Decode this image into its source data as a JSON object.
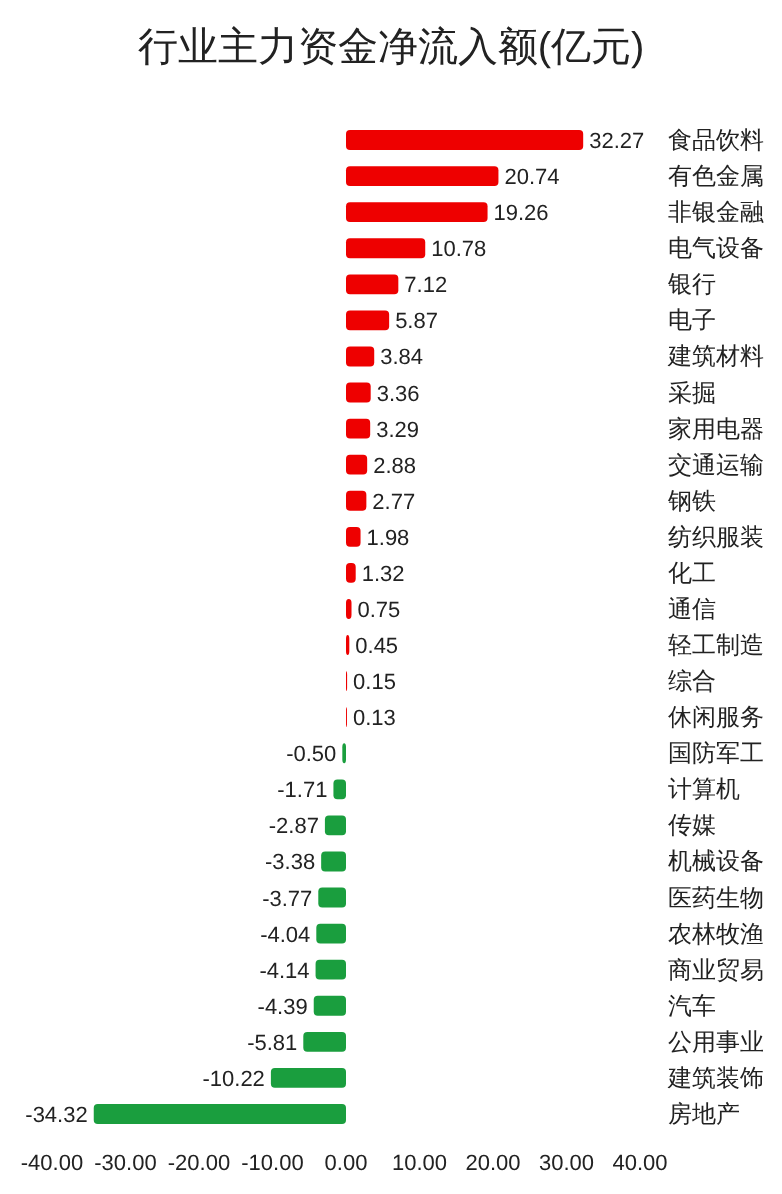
{
  "chart_data": {
    "type": "bar",
    "orientation": "horizontal",
    "title": "行业主力资金净流入额(亿元)",
    "categories": [
      "食品饮料",
      "有色金属",
      "非银金融",
      "电气设备",
      "银行",
      "电子",
      "建筑材料",
      "采掘",
      "家用电器",
      "交通运输",
      "钢铁",
      "纺织服装",
      "化工",
      "通信",
      "轻工制造",
      "综合",
      "休闲服务",
      "国防军工",
      "计算机",
      "传媒",
      "机械设备",
      "医药生物",
      "农林牧渔",
      "商业贸易",
      "汽车",
      "公用事业",
      "建筑装饰",
      "房地产"
    ],
    "values": [
      32.27,
      20.74,
      19.26,
      10.78,
      7.12,
      5.87,
      3.84,
      3.36,
      3.29,
      2.88,
      2.77,
      1.98,
      1.32,
      0.75,
      0.45,
      0.15,
      0.13,
      -0.5,
      -1.71,
      -2.87,
      -3.38,
      -3.77,
      -4.04,
      -4.14,
      -4.39,
      -5.81,
      -10.22,
      -34.32
    ],
    "value_labels": [
      "32.27",
      "20.74",
      "19.26",
      "10.78",
      "7.12",
      "5.87",
      "3.84",
      "3.36",
      "3.29",
      "2.88",
      "2.77",
      "1.98",
      "1.32",
      "0.75",
      "0.45",
      "0.15",
      "0.13",
      "-0.50",
      "-1.71",
      "-2.87",
      "-3.38",
      "-3.77",
      "-4.04",
      "-4.14",
      "-4.39",
      "-5.81",
      "-10.22",
      "-34.32"
    ],
    "colors": [
      "#ee0000",
      "#ee0000",
      "#ee0000",
      "#ee0000",
      "#ee0000",
      "#ee0000",
      "#ee0000",
      "#ee0000",
      "#ee0000",
      "#ee0000",
      "#ee0000",
      "#ee0000",
      "#ee0000",
      "#ee0000",
      "#ee0000",
      "#ee0000",
      "#ee0000",
      "#1a9e3e",
      "#1a9e3e",
      "#1a9e3e",
      "#1a9e3e",
      "#1a9e3e",
      "#1a9e3e",
      "#1a9e3e",
      "#1a9e3e",
      "#1a9e3e",
      "#1a9e3e",
      "#1a9e3e"
    ],
    "xlim": [
      -40,
      40
    ],
    "xticks": [
      {
        "value": -40,
        "label": "-40.00"
      },
      {
        "value": -30,
        "label": "-30.00"
      },
      {
        "value": -20,
        "label": "-20.00"
      },
      {
        "value": -10,
        "label": "-10.00"
      },
      {
        "value": 0,
        "label": "0.00"
      },
      {
        "value": 10,
        "label": "10.00"
      },
      {
        "value": 20,
        "label": "20.00"
      },
      {
        "value": 30,
        "label": "30.00"
      },
      {
        "value": 40,
        "label": "40.00"
      }
    ]
  }
}
